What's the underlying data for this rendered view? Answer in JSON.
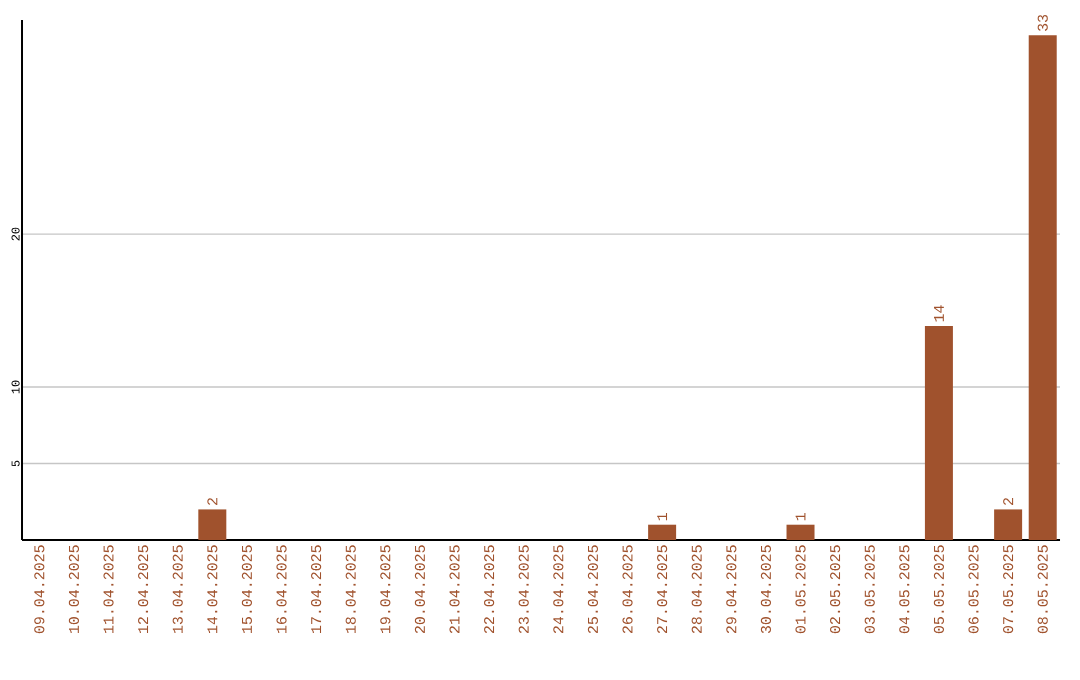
{
  "chart_data": {
    "type": "bar",
    "categories": [
      "09.04.2025",
      "10.04.2025",
      "11.04.2025",
      "12.04.2025",
      "13.04.2025",
      "14.04.2025",
      "15.04.2025",
      "16.04.2025",
      "17.04.2025",
      "18.04.2025",
      "19.04.2025",
      "20.04.2025",
      "21.04.2025",
      "22.04.2025",
      "23.04.2025",
      "24.04.2025",
      "25.04.2025",
      "26.04.2025",
      "27.04.2025",
      "28.04.2025",
      "29.04.2025",
      "30.04.2025",
      "01.05.2025",
      "02.05.2025",
      "03.05.2025",
      "04.05.2025",
      "05.05.2025",
      "06.05.2025",
      "07.05.2025",
      "08.05.2025"
    ],
    "values": [
      0,
      0,
      0,
      0,
      0,
      2,
      0,
      0,
      0,
      0,
      0,
      0,
      0,
      0,
      0,
      0,
      0,
      0,
      1,
      0,
      0,
      0,
      1,
      0,
      0,
      0,
      14,
      0,
      2,
      33
    ],
    "value_labels": [
      null,
      null,
      null,
      null,
      null,
      "2",
      null,
      null,
      null,
      null,
      null,
      null,
      null,
      null,
      null,
      null,
      null,
      null,
      "1",
      null,
      null,
      null,
      "1",
      null,
      null,
      null,
      "14",
      null,
      "2",
      "33"
    ],
    "color": "#a0522d",
    "ylim": [
      0,
      34
    ],
    "yticks": [
      5,
      10,
      20
    ],
    "grid": "y"
  }
}
